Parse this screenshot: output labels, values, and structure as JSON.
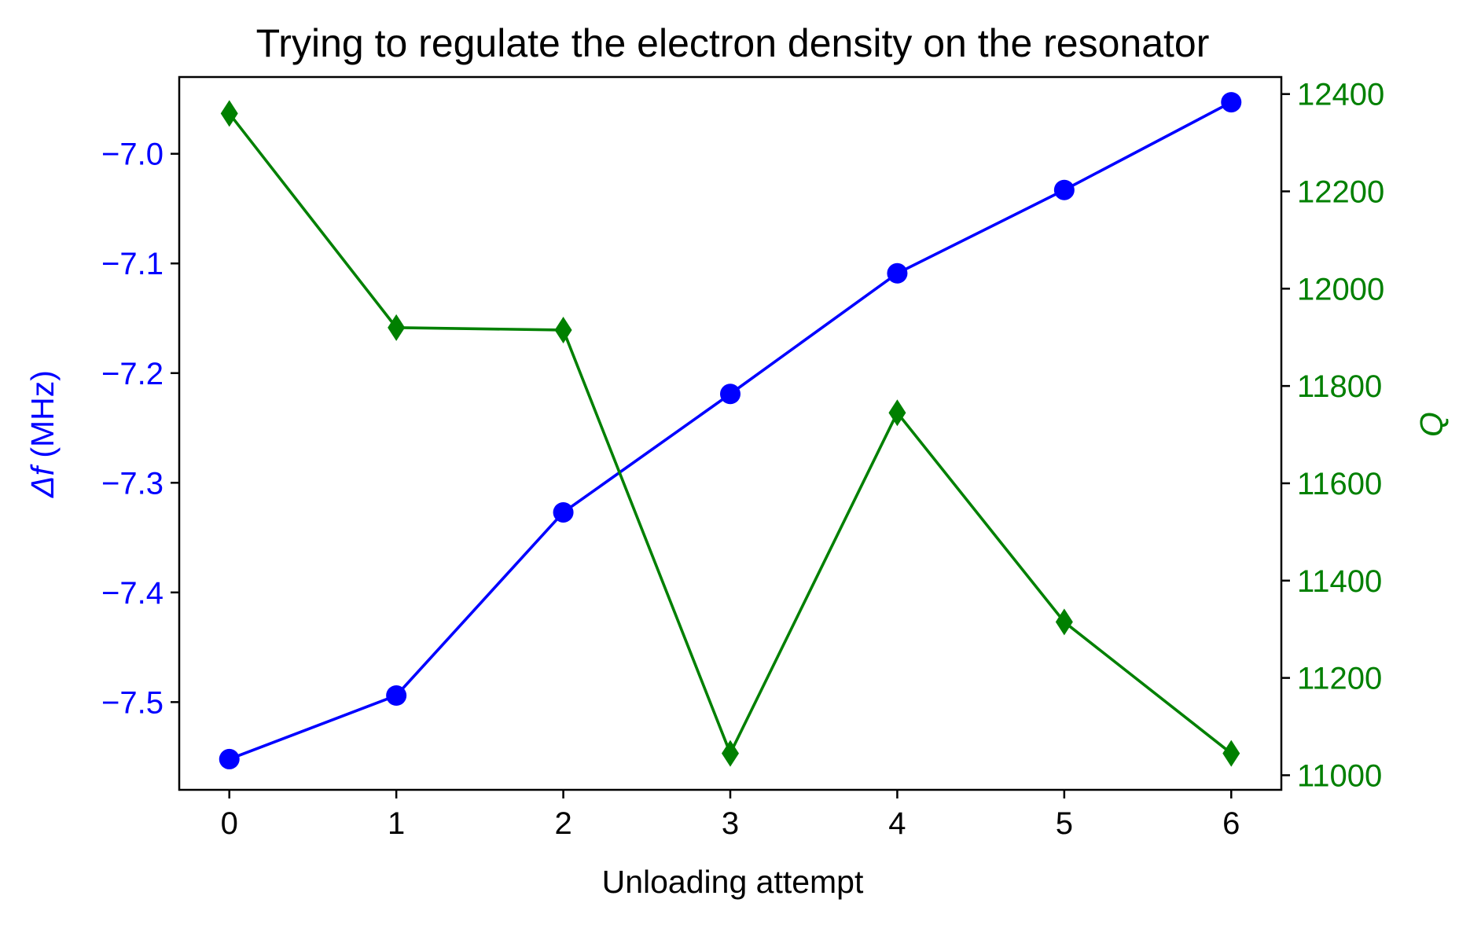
{
  "chart_data": {
    "type": "line",
    "title": "Trying to regulate the electron density on the resonator",
    "xlabel": "Unloading attempt",
    "ylabel_left": {
      "symbol": "Δf",
      "unit": " (MHz)"
    },
    "ylabel_right": "Q",
    "x": [
      0,
      1,
      2,
      3,
      4,
      5,
      6
    ],
    "xlim": [
      -0.3,
      6.3
    ],
    "xticks": [
      "0",
      "1",
      "2",
      "3",
      "4",
      "5",
      "6"
    ],
    "ylim_left": [
      -7.58,
      -6.93
    ],
    "yticks_left": [
      "−7.5",
      "−7.4",
      "−7.3",
      "−7.2",
      "−7.1",
      "−7.0"
    ],
    "yticks_left_values": [
      -7.5,
      -7.4,
      -7.3,
      -7.2,
      -7.1,
      -7.0
    ],
    "ylim_right": [
      10970,
      12435
    ],
    "yticks_right": [
      "11000",
      "11200",
      "11400",
      "11600",
      "11800",
      "12000",
      "12200",
      "12400"
    ],
    "yticks_right_values": [
      11000,
      11200,
      11400,
      11600,
      11800,
      12000,
      12200,
      12400
    ],
    "series": [
      {
        "axis": "left",
        "color": "#0000ff",
        "marker": "circle",
        "values": [
          -7.552,
          -7.494,
          -7.327,
          -7.219,
          -7.109,
          -7.033,
          -6.953
        ]
      },
      {
        "axis": "right",
        "color": "#008000",
        "marker": "diamond",
        "values": [
          12360,
          11920,
          11915,
          11045,
          11745,
          11315,
          11045
        ]
      }
    ],
    "grid": false,
    "legend": "none"
  }
}
